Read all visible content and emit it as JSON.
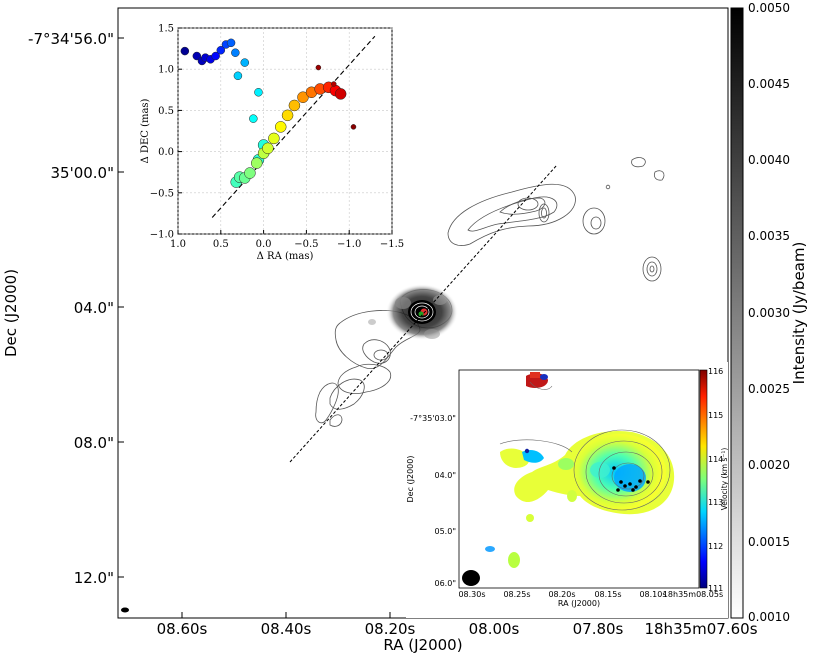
{
  "chart_data": [
    {
      "type": "image",
      "xlabel": "RA (J2000)",
      "ylabel": "Dec (J2000)",
      "x_ticks": [
        "08.60s",
        "08.40s",
        "08.20s",
        "08.00s",
        "07.80s",
        "18h35m07.60s"
      ],
      "y_ticks": [
        "-7°34'56.0\"",
        "35'00.0\"",
        "04.0\"",
        "08.0\"",
        "12.0\""
      ],
      "colorbar": {
        "label": "Intensity (Jy/beam)",
        "ticks": [
          "0.0050",
          "0.0045",
          "0.0040",
          "0.0035",
          "0.0030",
          "0.0025",
          "0.0020",
          "0.0015",
          "0.0010"
        ],
        "range": [
          0.001,
          0.005
        ],
        "colormap": "gray_r"
      },
      "colors": {
        "contour": "#555555",
        "axis_line": "#000000",
        "jet_axis": "#000000",
        "source_core": "#e03030",
        "source_mid": "#22a022"
      }
    },
    {
      "type": "scatter",
      "xlabel": "Δ RA (mas)",
      "ylabel": "Δ DEC (mas)",
      "xlim": [
        1.0,
        -1.5
      ],
      "ylim": [
        -1.0,
        1.5
      ],
      "x_ticks": [
        "1.0",
        "0.5",
        "0.0",
        "−0.5",
        "−1.0",
        "−1.5"
      ],
      "y_ticks": [
        "1.5",
        "1.0",
        "0.5",
        "0.0",
        "−0.5",
        "−1.0"
      ],
      "colorscale": "jet",
      "fit_line": {
        "x": [
          0.6,
          -1.3
        ],
        "y": [
          -0.8,
          1.4
        ]
      },
      "points": [
        {
          "x": 0.92,
          "y": 1.22,
          "c": 0.02
        },
        {
          "x": 0.78,
          "y": 1.16,
          "c": 0.05
        },
        {
          "x": 0.72,
          "y": 1.1,
          "c": 0.06
        },
        {
          "x": 0.68,
          "y": 1.14,
          "c": 0.08
        },
        {
          "x": 0.62,
          "y": 1.12,
          "c": 0.1
        },
        {
          "x": 0.56,
          "y": 1.16,
          "c": 0.13
        },
        {
          "x": 0.5,
          "y": 1.23,
          "c": 0.16
        },
        {
          "x": 0.44,
          "y": 1.3,
          "c": 0.19
        },
        {
          "x": 0.38,
          "y": 1.32,
          "c": 0.22
        },
        {
          "x": 0.33,
          "y": 1.2,
          "c": 0.25
        },
        {
          "x": 0.22,
          "y": 1.08,
          "c": 0.3
        },
        {
          "x": 0.3,
          "y": 0.92,
          "c": 0.33
        },
        {
          "x": 0.06,
          "y": 0.72,
          "c": 0.36
        },
        {
          "x": 0.12,
          "y": 0.4,
          "c": 0.38
        },
        {
          "x": 0.0,
          "y": 0.08,
          "c": 0.41
        },
        {
          "x": 0.06,
          "y": -0.1,
          "c": 0.42
        },
        {
          "x": 0.32,
          "y": -0.37,
          "c": 0.44
        },
        {
          "x": 0.28,
          "y": -0.31,
          "c": 0.46
        },
        {
          "x": 0.22,
          "y": -0.32,
          "c": 0.48
        },
        {
          "x": 0.16,
          "y": -0.26,
          "c": 0.5
        },
        {
          "x": 0.08,
          "y": -0.14,
          "c": 0.53
        },
        {
          "x": 0.0,
          "y": -0.02,
          "c": 0.56
        },
        {
          "x": -0.05,
          "y": 0.04,
          "c": 0.58
        },
        {
          "x": -0.12,
          "y": 0.16,
          "c": 0.6
        },
        {
          "x": -0.2,
          "y": 0.3,
          "c": 0.63
        },
        {
          "x": -0.28,
          "y": 0.44,
          "c": 0.66
        },
        {
          "x": -0.36,
          "y": 0.56,
          "c": 0.69
        },
        {
          "x": -0.46,
          "y": 0.66,
          "c": 0.73
        },
        {
          "x": -0.56,
          "y": 0.72,
          "c": 0.76
        },
        {
          "x": -0.66,
          "y": 0.76,
          "c": 0.8
        },
        {
          "x": -0.76,
          "y": 0.78,
          "c": 0.84
        },
        {
          "x": -0.84,
          "y": 0.74,
          "c": 0.88
        },
        {
          "x": -0.9,
          "y": 0.7,
          "c": 0.92
        },
        {
          "x": -0.82,
          "y": 0.82,
          "c": 0.95
        },
        {
          "x": -0.64,
          "y": 1.02,
          "c": 0.97
        },
        {
          "x": -1.05,
          "y": 0.3,
          "c": 0.99
        }
      ]
    },
    {
      "type": "image",
      "xlabel": "RA (J2000)",
      "ylabel": "Dec (J2000)",
      "x_ticks": [
        "08.30s",
        "08.25s",
        "08.20s",
        "08.15s",
        "08.10s",
        "18h35m08.05s"
      ],
      "y_ticks": [
        "-7°35'03.0\"",
        "04.0\"",
        "05.0\"",
        "06.0\""
      ],
      "colorbar": {
        "label": "Velocity (km s⁻¹)",
        "ticks": [
          "116",
          "115",
          "114",
          "113",
          "112",
          "111"
        ],
        "range": [
          111,
          116
        ],
        "colormap": "jet"
      },
      "colors": {
        "maser_spot": "#000000"
      }
    }
  ]
}
